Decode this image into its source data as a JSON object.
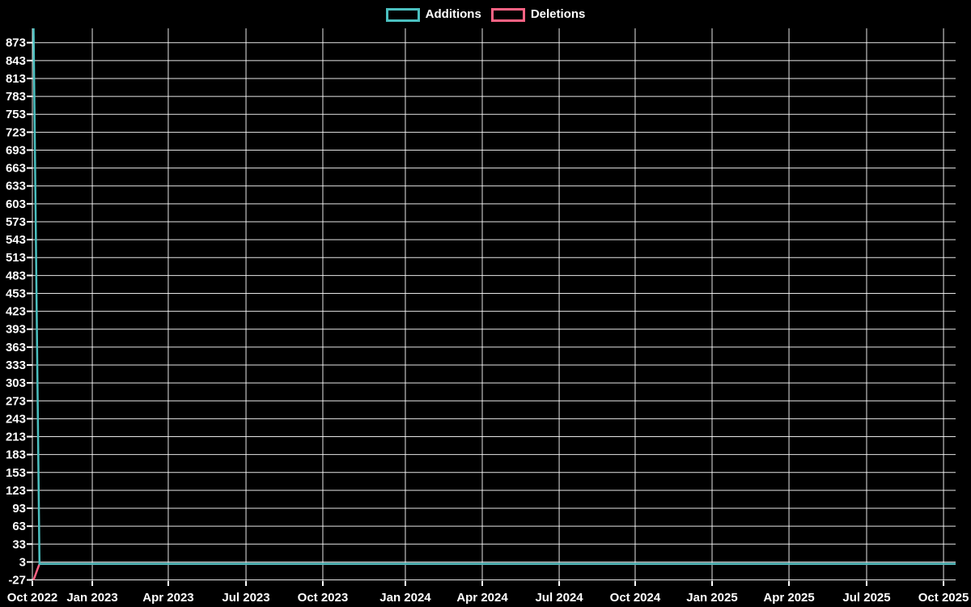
{
  "chart_data": {
    "type": "line",
    "title": "",
    "background_color": "#000000",
    "grid": true,
    "grid_color": "#ffffff",
    "text_color": "#ffffff",
    "legend_position": "top-center",
    "legend": [
      {
        "label": "Additions",
        "color": "#4bc0c0"
      },
      {
        "label": "Deletions",
        "color": "#ff6384"
      }
    ],
    "x_axis": {
      "label": "",
      "ticks": [
        {
          "label": "Oct 2022",
          "f": 0.0
        },
        {
          "label": "Jan 2023",
          "f": 0.0649
        },
        {
          "label": "Apr 2023",
          "f": 0.1472
        },
        {
          "label": "Jul 2023",
          "f": 0.2314
        },
        {
          "label": "Oct 2023",
          "f": 0.3146
        },
        {
          "label": "Jan 2024",
          "f": 0.404
        },
        {
          "label": "Apr 2024",
          "f": 0.4873
        },
        {
          "label": "Jul 2024",
          "f": 0.5706
        },
        {
          "label": "Oct 2024",
          "f": 0.6529
        },
        {
          "label": "Jan 2025",
          "f": 0.7362
        },
        {
          "label": "Apr 2025",
          "f": 0.8195
        },
        {
          "label": "Jul 2025",
          "f": 0.9036
        },
        {
          "label": "Oct 2025",
          "f": 0.9869
        }
      ]
    },
    "y_axis": {
      "label": "",
      "ticks": [
        873,
        843,
        813,
        783,
        753,
        723,
        693,
        663,
        633,
        603,
        573,
        543,
        513,
        483,
        453,
        423,
        393,
        363,
        333,
        303,
        273,
        243,
        213,
        183,
        153,
        123,
        93,
        63,
        33,
        3,
        -27
      ],
      "ylim": [
        -29,
        897
      ]
    },
    "series": [
      {
        "name": "Deletions",
        "color": "#ff6384",
        "points": [
          [
            0.0013,
            -27
          ],
          [
            0.0077,
            0
          ],
          [
            1.0,
            0
          ]
        ]
      },
      {
        "name": "Additions",
        "color": "#4bc0c0",
        "points": [
          [
            0.0013,
            897
          ],
          [
            0.0077,
            0
          ],
          [
            1.0,
            0
          ]
        ]
      }
    ]
  }
}
